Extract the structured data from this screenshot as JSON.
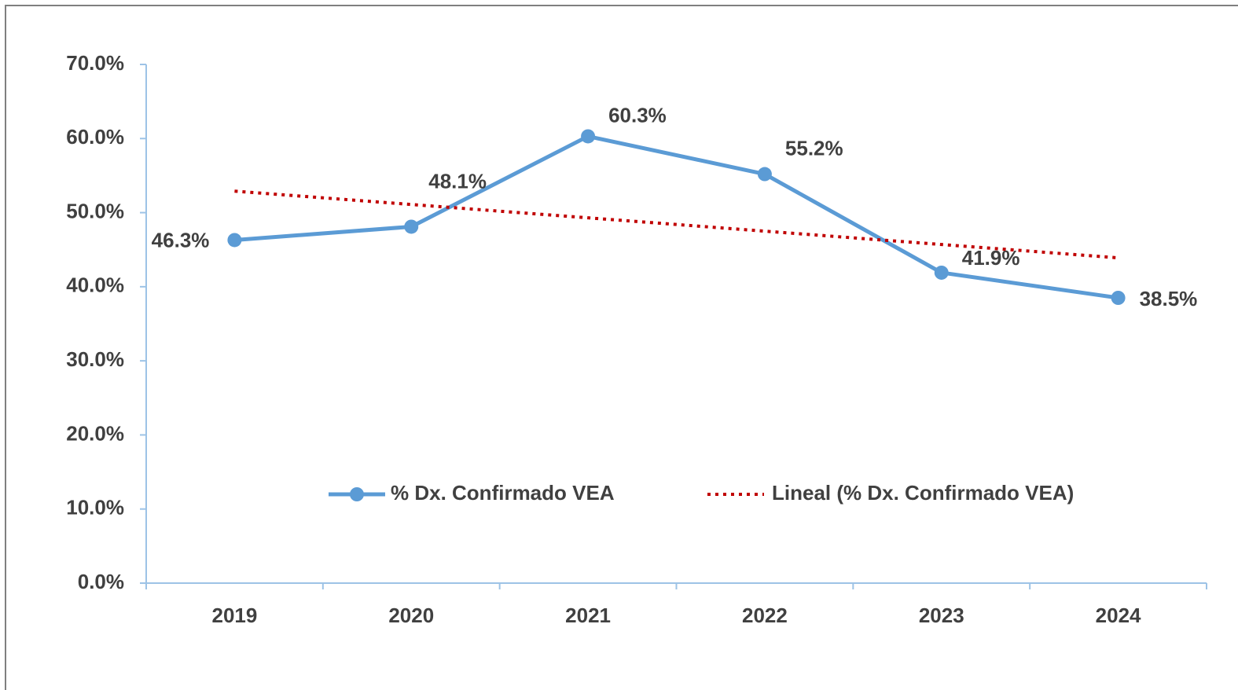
{
  "chart_data": {
    "type": "line",
    "categories": [
      "2019",
      "2020",
      "2021",
      "2022",
      "2023",
      "2024"
    ],
    "series": [
      {
        "name": "% Dx. Confirmado VEA",
        "color": "#5b9bd5",
        "values": [
          46.3,
          48.1,
          60.3,
          55.2,
          41.9,
          38.5
        ],
        "value_labels": [
          "46.3%",
          "48.1%",
          "60.3%",
          "55.2%",
          "41.9%",
          "38.5%"
        ]
      },
      {
        "name": "Lineal (% Dx. Confirmado VEA)",
        "color": "#c00000",
        "dashed": true,
        "values": [
          52.9,
          51.1,
          49.3,
          47.5,
          45.7,
          43.9
        ]
      }
    ],
    "ylim": [
      0,
      70
    ],
    "yticks": [
      {
        "value": 0,
        "label": "0.0%"
      },
      {
        "value": 10,
        "label": "10.0%"
      },
      {
        "value": 20,
        "label": "20.0%"
      },
      {
        "value": 30,
        "label": "30.0%"
      },
      {
        "value": 40,
        "label": "40.0%"
      },
      {
        "value": 50,
        "label": "50.0%"
      },
      {
        "value": 60,
        "label": "60.0%"
      },
      {
        "value": 70,
        "label": "70.0%"
      }
    ],
    "grid": false
  }
}
